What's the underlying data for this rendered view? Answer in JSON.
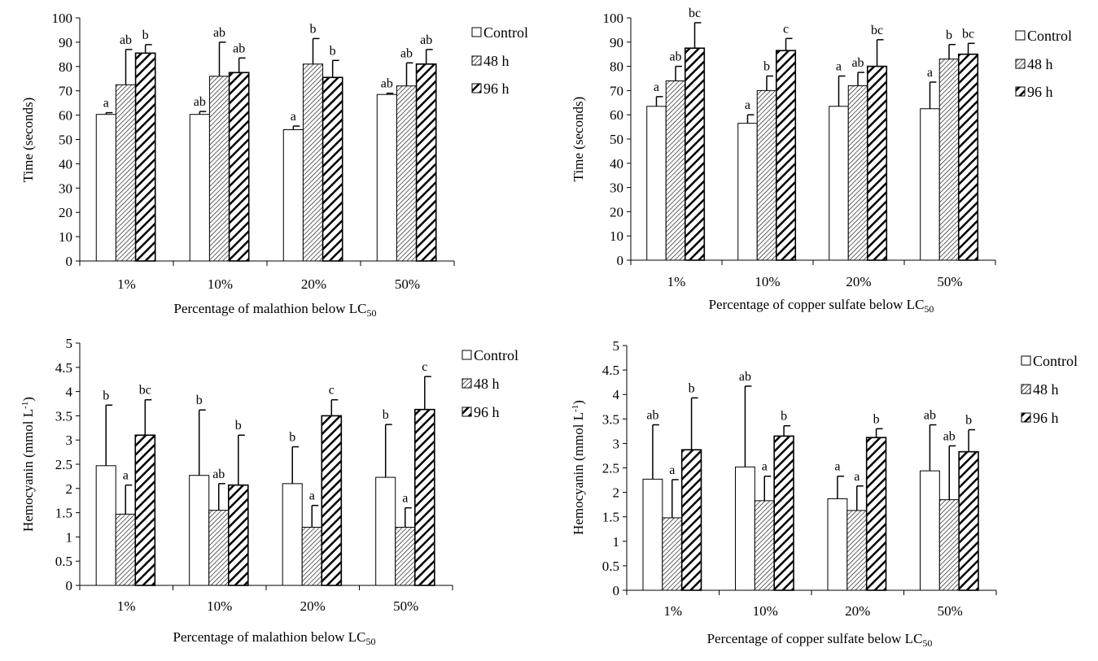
{
  "chart_data": [
    {
      "type": "bar",
      "ylabel": "Time (seconds)",
      "ylabel_sup": "",
      "ylabel_suffix": "",
      "xlabel": "Percentage of malathion below LC",
      "xlabel_sub": "50",
      "ylim": [
        0,
        100
      ],
      "ystep": 10,
      "categories": [
        "1%",
        "10%",
        "20%",
        "50%"
      ],
      "series": [
        {
          "name": "Control",
          "values": [
            60.3,
            60.3,
            54,
            68.5
          ],
          "err_top": [
            61,
            61.5,
            55.5,
            69
          ],
          "letters": [
            "a",
            "ab",
            "a",
            "ab"
          ]
        },
        {
          "name": "48 h",
          "values": [
            72.5,
            76,
            81,
            72
          ],
          "err_top": [
            87,
            90,
            91.5,
            81.5
          ],
          "letters": [
            "ab",
            "ab",
            "b",
            "ab"
          ]
        },
        {
          "name": "96 h",
          "values": [
            85.5,
            77.5,
            75.5,
            81
          ],
          "err_top": [
            89,
            83.5,
            82.5,
            87
          ],
          "letters": [
            "b",
            "ab",
            "b",
            "ab"
          ]
        }
      ],
      "legend": "right",
      "grid": false
    },
    {
      "type": "bar",
      "ylabel": "Time (seconds)",
      "ylabel_sup": "",
      "ylabel_suffix": "",
      "xlabel": "Percentage of copper sulfate below LC",
      "xlabel_sub": "50",
      "ylim": [
        0,
        100
      ],
      "ystep": 10,
      "categories": [
        "1%",
        "10%",
        "20%",
        "50%"
      ],
      "series": [
        {
          "name": "Control",
          "values": [
            63.5,
            56.5,
            63.5,
            62.5
          ],
          "err_top": [
            67.5,
            60,
            76,
            73.5
          ],
          "letters": [
            "a",
            "a",
            "a",
            "a"
          ]
        },
        {
          "name": "48 h",
          "values": [
            74,
            70,
            72,
            83
          ],
          "err_top": [
            80,
            76,
            77.5,
            89
          ],
          "letters": [
            "ab",
            "b",
            "ab",
            "b"
          ]
        },
        {
          "name": "96 h",
          "values": [
            87.5,
            86.5,
            80,
            85
          ],
          "err_top": [
            98,
            91.5,
            91,
            89.5
          ],
          "letters": [
            "bc",
            "c",
            "bc",
            "bc"
          ]
        }
      ],
      "legend": "right",
      "grid": false
    },
    {
      "type": "bar",
      "ylabel": "Hemocyanin (mmol L",
      "ylabel_sup": "-1",
      "ylabel_suffix": ")",
      "xlabel": "Percentage of malathion below LC",
      "xlabel_sub": "50",
      "ylim": [
        0,
        5
      ],
      "ystep": 0.5,
      "categories": [
        "1%",
        "10%",
        "20%",
        "50%"
      ],
      "series": [
        {
          "name": "Control",
          "values": [
            2.47,
            2.27,
            2.1,
            2.23
          ],
          "err_top": [
            3.72,
            3.62,
            2.86,
            3.32
          ],
          "letters": [
            "b",
            "b",
            "b",
            "b"
          ]
        },
        {
          "name": "48 h",
          "values": [
            1.47,
            1.55,
            1.2,
            1.2
          ],
          "err_top": [
            2.07,
            2.1,
            1.65,
            1.6
          ],
          "letters": [
            "a",
            "ab",
            "a",
            "a"
          ]
        },
        {
          "name": "96 h",
          "values": [
            3.1,
            2.07,
            3.5,
            3.63
          ],
          "err_top": [
            3.83,
            3.1,
            3.83,
            4.31
          ],
          "letters": [
            "bc",
            "b",
            "c",
            "c"
          ]
        }
      ],
      "legend": "right",
      "grid": false
    },
    {
      "type": "bar",
      "ylabel": "Hemocyanin (mmol L",
      "ylabel_sup": "-1",
      "ylabel_suffix": ")",
      "xlabel": "Percentage of copper sulfate below LC",
      "xlabel_sub": "50",
      "ylim": [
        0,
        5
      ],
      "ystep": 0.5,
      "categories": [
        "1%",
        "10%",
        "20%",
        "50%"
      ],
      "series": [
        {
          "name": "Control",
          "values": [
            2.27,
            2.52,
            1.87,
            2.44
          ],
          "err_top": [
            3.38,
            4.17,
            2.33,
            3.38
          ],
          "letters": [
            "ab",
            "ab",
            "a",
            "ab"
          ]
        },
        {
          "name": "48 h",
          "values": [
            1.48,
            1.83,
            1.63,
            1.85
          ],
          "err_top": [
            2.26,
            2.33,
            2.13,
            2.95
          ],
          "letters": [
            "a",
            "a",
            "a",
            "ab"
          ]
        },
        {
          "name": "96 h",
          "values": [
            2.87,
            3.15,
            3.12,
            2.83
          ],
          "err_top": [
            3.93,
            3.36,
            3.3,
            3.28
          ],
          "letters": [
            "b",
            "b",
            "b",
            "b"
          ]
        }
      ],
      "legend": "right",
      "grid": false
    }
  ]
}
